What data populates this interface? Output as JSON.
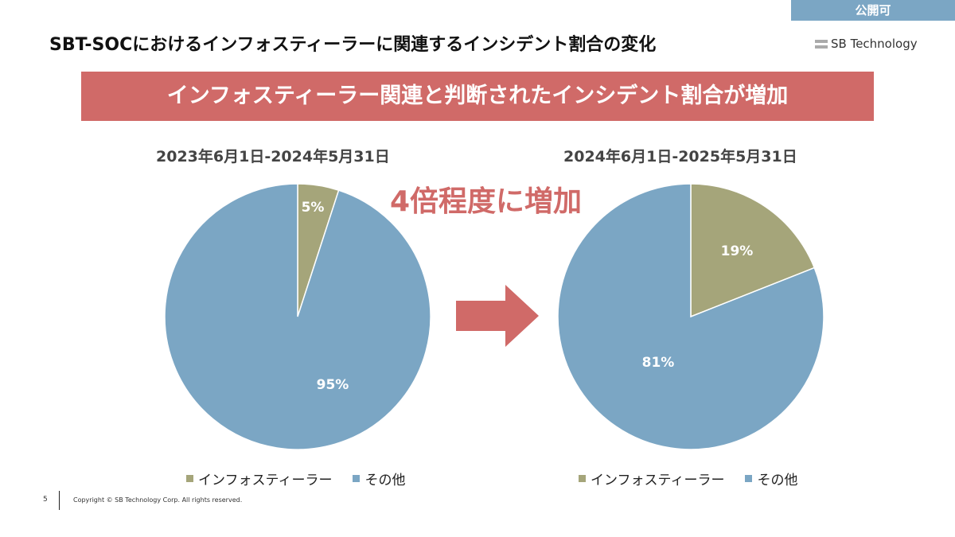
{
  "badge": "公開可",
  "title": "SBT-SOCにおけるインフォスティーラーに関連するインシデント割合の変化",
  "logo": "SB Technology",
  "banner": "インフォスティーラー関連と判断されたインシデント割合が増加",
  "callout": "4倍程度に増加",
  "footer": {
    "page": "5",
    "copyright": "Copyright © SB Technology Corp. All rights reserved."
  },
  "colors": {
    "infostealer": "#a5a57a",
    "other": "#7ba6c4",
    "accent": "#d06a68"
  },
  "chart_data": [
    {
      "type": "pie",
      "title": "2023年6月1日-2024年5月31日",
      "categories": [
        "インフォスティーラー",
        "その他"
      ],
      "values": [
        5,
        95
      ],
      "labels": [
        "5%",
        "95%"
      ],
      "legend_placement": "bottom"
    },
    {
      "type": "pie",
      "title": "2024年6月1日-2025年5月31日",
      "categories": [
        "インフォスティーラー",
        "その他"
      ],
      "values": [
        19,
        81
      ],
      "labels": [
        "19%",
        "81%"
      ],
      "legend_placement": "bottom"
    }
  ]
}
